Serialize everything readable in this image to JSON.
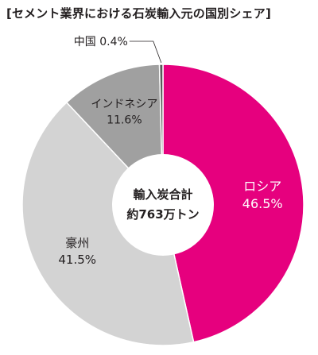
{
  "chart_data": {
    "type": "pie",
    "title": "[セメント業界における石炭輸入元の国別シェア]",
    "unit": "%",
    "center_label": [
      "輸入炭合計",
      "約763万トン"
    ],
    "slices": [
      {
        "label": "ロシア",
        "value": 46.5,
        "value_label": "46.5%",
        "color": "#e6007e"
      },
      {
        "label": "豪州",
        "value": 41.5,
        "value_label": "41.5%",
        "color": "#d3d3d3"
      },
      {
        "label": "インドネシア",
        "value": 11.6,
        "value_label": "11.6%",
        "color": "#a0a0a0"
      },
      {
        "label": "中国",
        "value": 0.4,
        "value_label": "0.4%",
        "color": "#5a5a5a"
      }
    ]
  }
}
